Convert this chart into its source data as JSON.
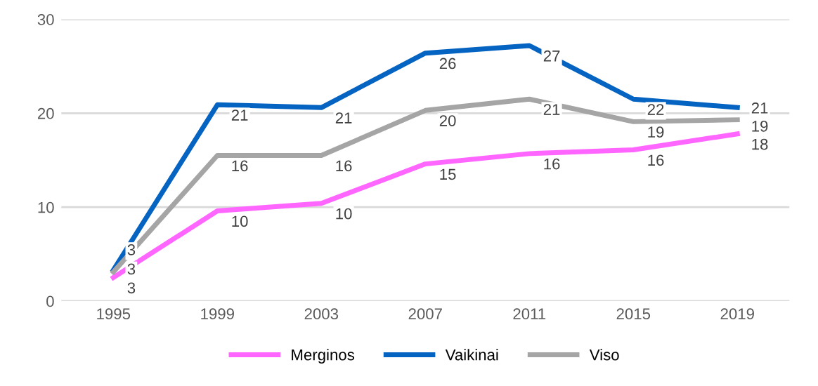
{
  "chart_data": {
    "type": "line",
    "categories": [
      "1995",
      "1999",
      "2003",
      "2007",
      "2011",
      "2015",
      "2019"
    ],
    "series": [
      {
        "name": "Merginos",
        "color": "#ff66ff",
        "values": [
          2.5,
          9.6,
          10.4,
          14.6,
          15.7,
          16.1,
          17.8
        ],
        "value_labels": [
          "3",
          "10",
          "10",
          "15",
          "16",
          "16",
          "18"
        ]
      },
      {
        "name": "Vaikinai",
        "color": "#0563c1",
        "values": [
          3.3,
          20.9,
          20.6,
          26.4,
          27.2,
          21.5,
          20.6
        ],
        "value_labels": [
          "3",
          "21",
          "21",
          "26",
          "27",
          "22",
          "21"
        ]
      },
      {
        "name": "Viso",
        "color": "#a5a5a5",
        "values": [
          3.1,
          15.5,
          15.5,
          20.3,
          21.5,
          19.1,
          19.3
        ],
        "value_labels": [
          "3",
          "16",
          "16",
          "20",
          "21",
          "19",
          "19"
        ]
      }
    ],
    "ylim": [
      0,
      30
    ],
    "yticks": [
      0,
      10,
      20,
      30
    ],
    "grid": "y",
    "legend": "bottom",
    "marker": "none",
    "line_style": "solid"
  }
}
